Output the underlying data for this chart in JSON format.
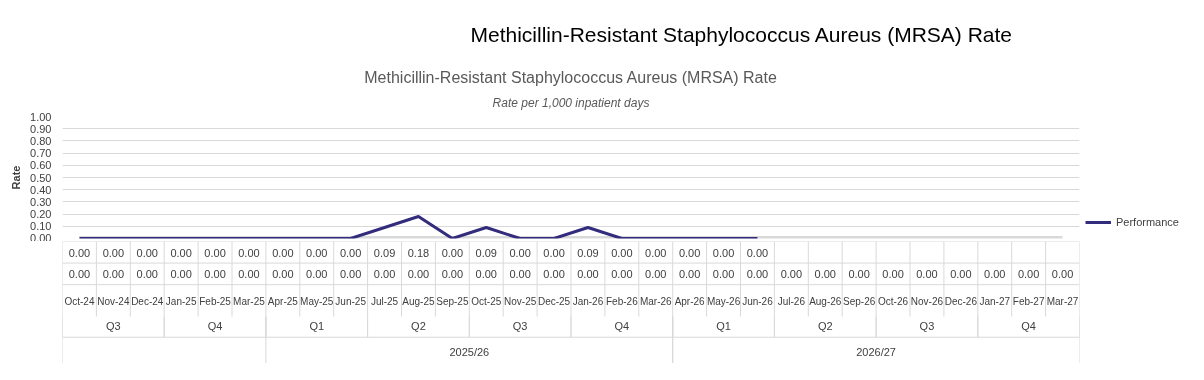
{
  "chart_data": {
    "type": "line",
    "title": "Methicillin-Resistant Staphylococcus Aureus (MRSA) Rate",
    "subtitle": "Rate per 1,000 inpatient days",
    "ylabel": "Rate",
    "categories": [
      "Oct-24",
      "Nov-24",
      "Dec-24",
      "Jan-25",
      "Feb-25",
      "Mar-25",
      "Apr-25",
      "May-25",
      "Jun-25",
      "Jul-25",
      "Aug-25",
      "Sep-25",
      "Oct-25",
      "Nov-25",
      "Dec-25",
      "Jan-26",
      "Feb-26",
      "Mar-26",
      "Apr-26",
      "May-26",
      "Jun-26",
      "Jul-26",
      "Aug-26",
      "Sep-26",
      "Oct-26",
      "Nov-26",
      "Dec-26",
      "Jan-27",
      "Feb-27",
      "Mar-27"
    ],
    "series": [
      {
        "name": "Performance",
        "color": "#332c7c",
        "values": [
          0,
          0,
          0,
          0,
          0,
          0,
          0,
          0,
          0,
          0.09,
          0.18,
          0,
          0.09,
          0,
          0,
          0.09,
          0,
          0,
          0,
          0,
          0,
          null,
          null,
          null,
          null,
          null,
          null,
          null,
          null,
          null
        ],
        "value_labels": [
          "0.00",
          "0.00",
          "0.00",
          "0.00",
          "0.00",
          "0.00",
          "0.00",
          "0.00",
          "0.00",
          "0.09",
          "0.18",
          "0.00",
          "0.09",
          "0.00",
          "0.00",
          "0.09",
          "0.00",
          "0.00",
          "0.00",
          "0.00",
          "0.00",
          null,
          null,
          null,
          null,
          null,
          null,
          null,
          null,
          null
        ]
      },
      {
        "color": "#d9d9d9",
        "values": [
          0,
          0,
          0,
          0,
          0,
          0,
          0,
          0,
          0,
          0,
          0,
          0,
          0,
          0,
          0,
          0,
          0,
          0,
          0,
          0,
          0,
          0,
          0,
          0,
          0,
          0,
          0,
          0,
          0,
          0
        ],
        "value_labels": [
          "0.00",
          "0.00",
          "0.00",
          "0.00",
          "0.00",
          "0.00",
          "0.00",
          "0.00",
          "0.00",
          "0.00",
          "0.00",
          "0.00",
          "0.00",
          "0.00",
          "0.00",
          "0.00",
          "0.00",
          "0.00",
          "0.00",
          "0.00",
          "0.00",
          "0.00",
          "0.00",
          "0.00",
          "0.00",
          "0.00",
          "0.00",
          "0.00",
          "0.00",
          "0.00"
        ]
      }
    ],
    "ylim": [
      0,
      1
    ],
    "yticks": [
      {
        "value": 0,
        "label": "0.00"
      },
      {
        "value": 0.1,
        "label": "0.10"
      },
      {
        "value": 0.2,
        "label": "0.20"
      },
      {
        "value": 0.3,
        "label": "0.30"
      },
      {
        "value": 0.4,
        "label": "0.40"
      },
      {
        "value": 0.5,
        "label": "0.50"
      },
      {
        "value": 0.6,
        "label": "0.60"
      },
      {
        "value": 0.7,
        "label": "0.70"
      },
      {
        "value": 0.8,
        "label": "0.80"
      },
      {
        "value": 0.9,
        "label": "0.90"
      },
      {
        "value": 1,
        "label": "1.00"
      }
    ],
    "grid": "y",
    "legend": "right",
    "line_style": "solid",
    "annotations": [
      "Methicillin-Resistant Staphylococcus Aureus (MRSA) Rate",
      "Q3",
      "Q4",
      "Q1",
      "Q2",
      "Q3",
      "Q4",
      "Q1",
      "Q2",
      "Q3",
      "Q4",
      "2025/26",
      "2026/27"
    ]
  }
}
